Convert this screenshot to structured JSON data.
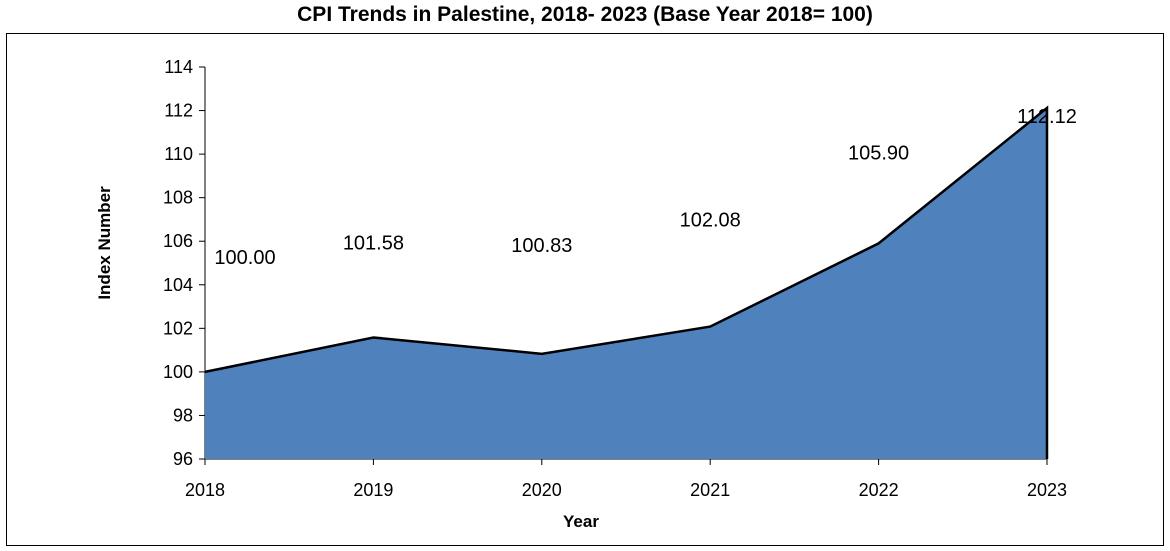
{
  "chart_data": {
    "type": "area",
    "title": "CPI Trends in Palestine, 2018- 2023 (Base Year 2018= 100)",
    "xlabel": "Year",
    "ylabel": "Index Number",
    "categories": [
      "2018",
      "2019",
      "2020",
      "2021",
      "2022",
      "2023"
    ],
    "series": [
      {
        "values": [
          100.0,
          101.58,
          100.83,
          102.08,
          105.9,
          112.12
        ],
        "data_labels": [
          "100.00",
          "101.58",
          "100.83",
          "102.08",
          "105.90",
          "112.12"
        ]
      }
    ],
    "ylim": [
      96,
      114
    ],
    "yticks": [
      "96",
      "98",
      "100",
      "102",
      "104",
      "106",
      "108",
      "110",
      "112",
      "114"
    ],
    "grid": false,
    "legend": "none",
    "fill_color": "#4F81BD",
    "line_color": "#000000"
  }
}
